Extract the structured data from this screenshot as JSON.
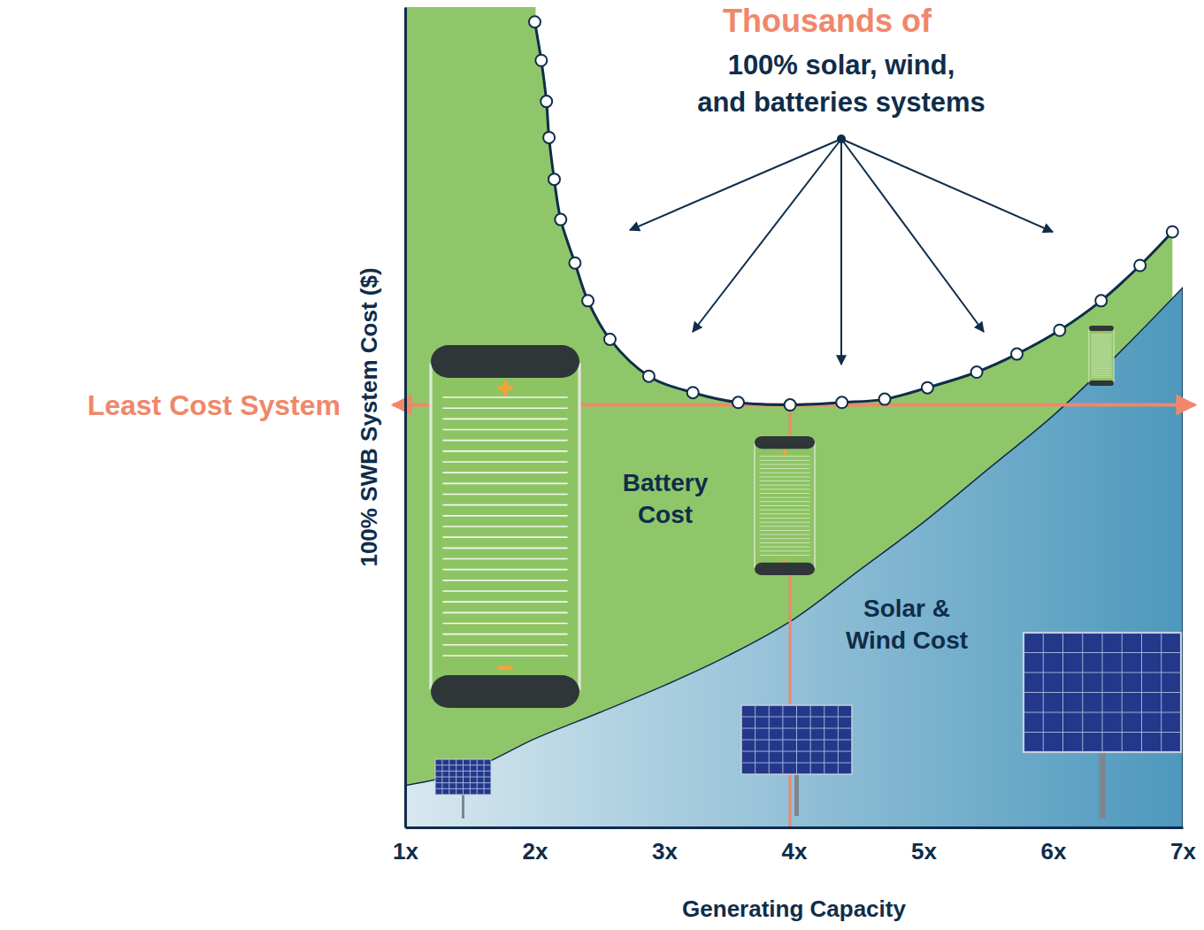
{
  "chart_data": {
    "type": "line",
    "x_label": "Generating Capacity",
    "y_label": "100% SWB System Cost ($)",
    "xlim": [
      1,
      7
    ],
    "xticks": [
      {
        "value": 1,
        "label": "1x"
      },
      {
        "value": 2,
        "label": "2x"
      },
      {
        "value": 3,
        "label": "3x"
      },
      {
        "value": 4,
        "label": "4x"
      },
      {
        "value": 5,
        "label": "5x"
      },
      {
        "value": 6,
        "label": "6x"
      },
      {
        "value": 7,
        "label": "7x"
      }
    ],
    "ylim": [
      0,
      100
    ],
    "yticks": [],
    "tick_labels": "x",
    "series": [
      {
        "name": "Solar & Wind Cost",
        "type": "area",
        "color": "#4d98bd",
        "x": [
          1,
          1.5,
          2,
          2.5,
          3,
          3.5,
          4,
          4.5,
          5,
          5.5,
          6,
          6.5,
          7
        ],
        "values": [
          5.1,
          7.0,
          10.8,
          14.0,
          17.3,
          21.0,
          25.4,
          31.3,
          37.2,
          43.7,
          50.2,
          57.7,
          65.8
        ]
      },
      {
        "type": "line",
        "marker": "circle",
        "color": "#0f2d4a",
        "x": [
          2.0,
          2.05,
          2.09,
          2.11,
          2.15,
          2.2,
          2.31,
          2.41,
          2.58,
          2.88,
          3.22,
          3.57,
          3.97,
          4.37,
          4.7,
          5.03,
          5.41,
          5.72,
          6.05,
          6.37,
          6.67,
          6.92
        ],
        "values": [
          98.2,
          93.5,
          88.5,
          84.1,
          79.0,
          74.1,
          68.8,
          64.2,
          59.5,
          55.0,
          53.0,
          51.8,
          51.5,
          51.8,
          52.2,
          53.6,
          55.5,
          57.7,
          60.6,
          64.2,
          68.5,
          72.6
        ]
      }
    ],
    "battery_label": "Battery Cost",
    "least_cost": {
      "label": "Least Cost System",
      "x": 3.97,
      "y": 51.5
    },
    "callout": {
      "title": "Thousands of",
      "text": "100% solar, wind, and batteries systems"
    }
  }
}
